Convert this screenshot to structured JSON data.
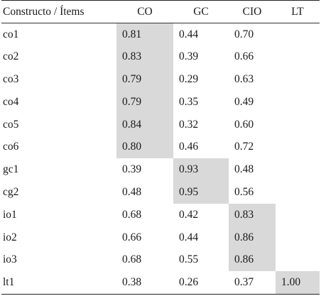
{
  "table": {
    "headers": [
      "Constructo / Ítems",
      "CO",
      "GC",
      "CIO",
      "LT"
    ],
    "rows": [
      {
        "item": "co1",
        "values": [
          "0.81",
          "0.44",
          "0.70",
          ""
        ],
        "highlight": 0
      },
      {
        "item": "co2",
        "values": [
          "0.83",
          "0.39",
          "0.66",
          ""
        ],
        "highlight": 0
      },
      {
        "item": "co3",
        "values": [
          "0.79",
          "0.29",
          "0.63",
          ""
        ],
        "highlight": 0
      },
      {
        "item": "co4",
        "values": [
          "0.79",
          "0.35",
          "0.49",
          ""
        ],
        "highlight": 0
      },
      {
        "item": "co5",
        "values": [
          "0.84",
          "0.32",
          "0.60",
          ""
        ],
        "highlight": 0
      },
      {
        "item": "co6",
        "values": [
          "0.80",
          "0.46",
          "0.72",
          ""
        ],
        "highlight": 0
      },
      {
        "item": "gc1",
        "values": [
          "0.39",
          "0.93",
          "0.48",
          ""
        ],
        "highlight": 1
      },
      {
        "item": "cg2",
        "values": [
          "0.48",
          "0.95",
          "0.56",
          ""
        ],
        "highlight": 1
      },
      {
        "item": "io1",
        "values": [
          "0.68",
          "0.42",
          "0.83",
          ""
        ],
        "highlight": 2
      },
      {
        "item": "io2",
        "values": [
          "0.66",
          "0.44",
          "0.86",
          ""
        ],
        "highlight": 2
      },
      {
        "item": "io3",
        "values": [
          "0.68",
          "0.55",
          "0.86",
          ""
        ],
        "highlight": 2
      },
      {
        "item": "lt1",
        "values": [
          "0.38",
          "0.26",
          "0.37",
          "1.00"
        ],
        "highlight": 3
      }
    ],
    "colors": {
      "highlight": "#d9d9d9",
      "text": "#1a1a1a",
      "rule": "#222222"
    }
  }
}
